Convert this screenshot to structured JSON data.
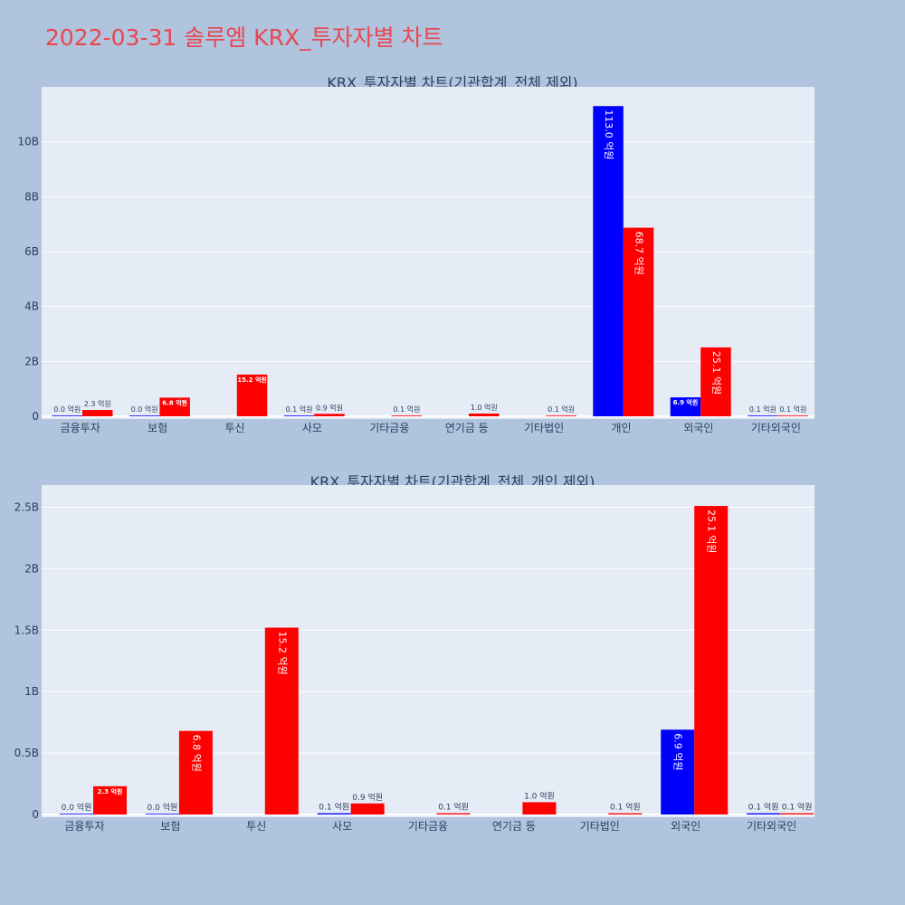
{
  "page": {
    "title": "2022-03-31 솔루엠 KRX_투자자별 차트"
  },
  "colors": {
    "background": "#b0c4de",
    "plot_bg": "#e5ecf6",
    "grid": "#ffffff",
    "buy": "#0000ff",
    "sell": "#ff0000",
    "title": "#e8474f",
    "text": "#2a3f5f"
  },
  "chart_data": [
    {
      "type": "bar",
      "title": "KRX_투자자별 차트(기관합계_전체 제외)",
      "categories": [
        "금융투자",
        "보험",
        "투신",
        "사모",
        "기타금융",
        "연기금 등",
        "기타법인",
        "개인",
        "외국인",
        "기타외국인"
      ],
      "series": [
        {
          "color": "#0000ff",
          "values": [
            0.001,
            0.001,
            null,
            0.01,
            null,
            null,
            null,
            11.3,
            0.69,
            0.01
          ],
          "labels": [
            "0.0 억원",
            "0.0 억원",
            "",
            "0.1 억원",
            "",
            "",
            "",
            "113.0 억원",
            "6.9 억원",
            "0.1 억원"
          ]
        },
        {
          "color": "#ff0000",
          "values": [
            0.23,
            0.68,
            1.52,
            0.09,
            0.01,
            0.1,
            0.01,
            6.87,
            2.51,
            0.01
          ],
          "labels": [
            "2.3 억원",
            "6.8 억원",
            "15.2 억원",
            "0.9 억원",
            "0.1 억원",
            "1.0 억원",
            "0.1 억원",
            "68.7 억원",
            "25.1 억원",
            "0.1 억원"
          ]
        }
      ],
      "ylim": [
        0,
        12
      ],
      "yticks": [
        0,
        2,
        4,
        6,
        8,
        10
      ],
      "ytick_labels": [
        "0",
        "2B",
        "4B",
        "6B",
        "8B",
        "10B"
      ],
      "grid": true
    },
    {
      "type": "bar",
      "title": "KRX_투자자별 차트(기관합계_전체_개인 제외)",
      "categories": [
        "금융투자",
        "보험",
        "투신",
        "사모",
        "기타금융",
        "연기금 등",
        "기타법인",
        "외국인",
        "기타외국인"
      ],
      "series": [
        {
          "color": "#0000ff",
          "values": [
            0.001,
            0.001,
            null,
            0.01,
            null,
            null,
            null,
            0.69,
            0.01
          ],
          "labels": [
            "0.0 억원",
            "0.0 억원",
            "",
            "0.1 억원",
            "",
            "",
            "",
            "6.9 억원",
            "0.1 억원"
          ]
        },
        {
          "color": "#ff0000",
          "values": [
            0.23,
            0.68,
            1.52,
            0.09,
            0.01,
            0.1,
            0.01,
            2.51,
            0.01
          ],
          "labels": [
            "2.3 억원",
            "6.8 억원",
            "15.2 억원",
            "0.9 억원",
            "0.1 억원",
            "1.0 억원",
            "0.1 억원",
            "25.1 억원",
            "0.1 억원"
          ]
        }
      ],
      "ylim": [
        0,
        2.68
      ],
      "yticks": [
        0,
        0.5,
        1,
        1.5,
        2,
        2.5
      ],
      "ytick_labels": [
        "0",
        "0.5B",
        "1B",
        "1.5B",
        "2B",
        "2.5B"
      ],
      "grid": true
    }
  ]
}
